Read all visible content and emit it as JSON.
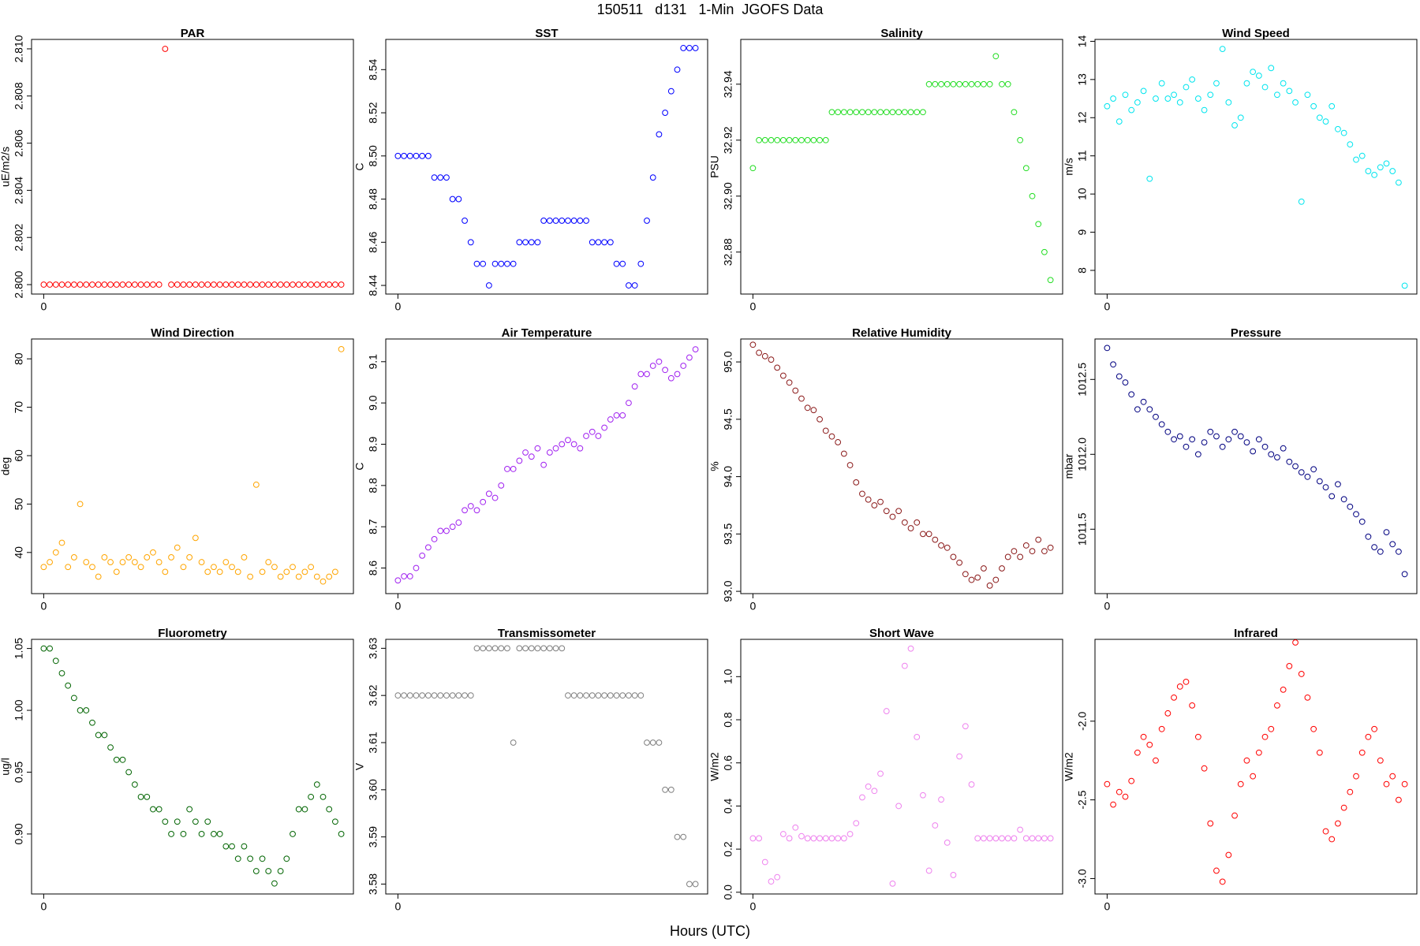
{
  "chart_data": {
    "title": "150511   d131   1-Min  JGOFS Data",
    "x_label": "Hours (UTC)",
    "x": [
      0,
      1,
      2,
      3,
      4,
      5,
      6,
      7,
      8,
      9,
      10,
      11,
      12,
      13,
      14,
      15,
      16,
      17,
      18,
      19,
      20,
      21,
      22,
      23,
      24,
      25,
      26,
      27,
      28,
      29,
      30,
      31,
      32,
      33,
      34,
      35,
      36,
      37,
      38,
      39,
      40,
      41,
      42,
      43,
      44,
      45,
      46,
      47,
      48,
      49
    ],
    "xlim": [
      -2,
      51
    ],
    "xticks": [
      0
    ],
    "panels": [
      {
        "type": "scatter",
        "title": "PAR",
        "y_label": "uE/m2/s",
        "color": "#ff0000",
        "values": [
          2.8,
          2.8,
          2.8,
          2.8,
          2.8,
          2.8,
          2.8,
          2.8,
          2.8,
          2.8,
          2.8,
          2.8,
          2.8,
          2.8,
          2.8,
          2.8,
          2.8,
          2.8,
          2.8,
          2.8,
          2.81,
          2.8,
          2.8,
          2.8,
          2.8,
          2.8,
          2.8,
          2.8,
          2.8,
          2.8,
          2.8,
          2.8,
          2.8,
          2.8,
          2.8,
          2.8,
          2.8,
          2.8,
          2.8,
          2.8,
          2.8,
          2.8,
          2.8,
          2.8,
          2.8,
          2.8,
          2.8,
          2.8,
          2.8,
          2.8
        ],
        "ylim": [
          2.7996,
          2.8104
        ],
        "yticks": [
          {
            "value": 2.8,
            "label": "2.800"
          },
          {
            "value": 2.802,
            "label": "2.802"
          },
          {
            "value": 2.804,
            "label": "2.804"
          },
          {
            "value": 2.806,
            "label": "2.806"
          },
          {
            "value": 2.808,
            "label": "2.808"
          },
          {
            "value": 2.81,
            "label": "2.810"
          }
        ]
      },
      {
        "type": "scatter",
        "title": "SST",
        "y_label": "C",
        "color": "#0000ff",
        "values": [
          8.5,
          8.5,
          8.5,
          8.5,
          8.5,
          8.5,
          8.49,
          8.49,
          8.49,
          8.48,
          8.48,
          8.47,
          8.46,
          8.45,
          8.45,
          8.44,
          8.45,
          8.45,
          8.45,
          8.45,
          8.46,
          8.46,
          8.46,
          8.46,
          8.47,
          8.47,
          8.47,
          8.47,
          8.47,
          8.47,
          8.47,
          8.47,
          8.46,
          8.46,
          8.46,
          8.46,
          8.45,
          8.45,
          8.44,
          8.44,
          8.45,
          8.47,
          8.49,
          8.51,
          8.52,
          8.53,
          8.54,
          8.55,
          8.55,
          8.55
        ],
        "ylim": [
          8.436,
          8.554
        ],
        "yticks": [
          8.44,
          8.46,
          8.48,
          {
            "value": 8.5,
            "label": "8.50"
          },
          8.52,
          8.54
        ]
      },
      {
        "type": "scatter",
        "title": "Salinity",
        "y_label": "PSU",
        "color": "#22dd22",
        "values": [
          32.91,
          32.92,
          32.92,
          32.92,
          32.92,
          32.92,
          32.92,
          32.92,
          32.92,
          32.92,
          32.92,
          32.92,
          32.92,
          32.93,
          32.93,
          32.93,
          32.93,
          32.93,
          32.93,
          32.93,
          32.93,
          32.93,
          32.93,
          32.93,
          32.93,
          32.93,
          32.93,
          32.93,
          32.93,
          32.94,
          32.94,
          32.94,
          32.94,
          32.94,
          32.94,
          32.94,
          32.94,
          32.94,
          32.94,
          32.94,
          32.95,
          32.94,
          32.94,
          32.93,
          32.92,
          32.91,
          32.9,
          32.89,
          32.88,
          32.87
        ],
        "ylim": [
          32.865,
          32.956
        ],
        "yticks": [
          32.88,
          {
            "value": 32.9,
            "label": "32.90"
          },
          32.92,
          32.94
        ]
      },
      {
        "type": "scatter",
        "title": "Wind Speed",
        "y_label": "m/s",
        "color": "#00e5ee",
        "values": [
          12.3,
          12.5,
          11.9,
          12.6,
          12.2,
          12.4,
          12.7,
          10.4,
          12.5,
          12.9,
          12.5,
          12.6,
          12.4,
          12.8,
          13.0,
          12.5,
          12.2,
          12.6,
          12.9,
          13.8,
          12.4,
          11.8,
          12.0,
          12.9,
          13.2,
          13.1,
          12.8,
          13.3,
          12.6,
          12.9,
          12.7,
          12.4,
          9.8,
          12.6,
          12.3,
          12.0,
          11.9,
          12.3,
          11.7,
          11.6,
          11.3,
          10.9,
          11.0,
          10.6,
          10.5,
          10.7,
          10.8,
          10.6,
          10.3,
          7.6
        ],
        "ylim": [
          7.38,
          14.05
        ],
        "yticks": [
          8,
          9,
          10,
          11,
          12,
          13,
          14
        ]
      },
      {
        "type": "scatter",
        "title": "Wind Direction",
        "y_label": "deg",
        "color": "#ffa500",
        "values": [
          37,
          38,
          40,
          42,
          37,
          39,
          50,
          38,
          37,
          35,
          39,
          38,
          36,
          38,
          39,
          38,
          37,
          39,
          40,
          38,
          36,
          39,
          41,
          37,
          39,
          43,
          38,
          36,
          37,
          36,
          38,
          37,
          36,
          39,
          35,
          54,
          36,
          38,
          37,
          35,
          36,
          37,
          35,
          36,
          37,
          35,
          34,
          35,
          36,
          82
        ],
        "ylim": [
          31.5,
          84.1
        ],
        "yticks": [
          40,
          50,
          60,
          70,
          80
        ]
      },
      {
        "type": "scatter",
        "title": "Air Temperature",
        "y_label": "C",
        "color": "#a020f0",
        "values": [
          8.57,
          8.58,
          8.58,
          8.6,
          8.63,
          8.65,
          8.67,
          8.69,
          8.69,
          8.7,
          8.71,
          8.74,
          8.75,
          8.74,
          8.76,
          8.78,
          8.77,
          8.8,
          8.84,
          8.84,
          8.86,
          8.88,
          8.87,
          8.89,
          8.85,
          8.88,
          8.89,
          8.9,
          8.91,
          8.9,
          8.89,
          8.92,
          8.93,
          8.92,
          8.94,
          8.96,
          8.97,
          8.97,
          9.0,
          9.04,
          9.07,
          9.07,
          9.09,
          9.1,
          9.08,
          9.06,
          9.07,
          9.09,
          9.11,
          9.13
        ],
        "ylim": [
          8.538,
          9.155
        ],
        "yticks": [
          8.6,
          8.7,
          8.8,
          8.9,
          {
            "value": 9,
            "label": "9.0"
          },
          9.1
        ]
      },
      {
        "type": "scatter",
        "title": "Relative Humidity",
        "y_label": "%",
        "color": "#8b1a1a",
        "values": [
          95.15,
          95.08,
          95.05,
          95.02,
          94.95,
          94.88,
          94.82,
          94.75,
          94.68,
          94.6,
          94.58,
          94.5,
          94.4,
          94.35,
          94.3,
          94.2,
          94.1,
          93.95,
          93.85,
          93.8,
          93.75,
          93.78,
          93.7,
          93.65,
          93.7,
          93.6,
          93.55,
          93.6,
          93.5,
          93.5,
          93.45,
          93.4,
          93.38,
          93.3,
          93.25,
          93.15,
          93.1,
          93.12,
          93.2,
          93.05,
          93.1,
          93.2,
          93.3,
          93.35,
          93.3,
          93.4,
          93.35,
          93.45,
          93.35,
          93.38
        ],
        "ylim": [
          92.98,
          95.2
        ],
        "yticks": [
          {
            "value": 93,
            "label": "93.0"
          },
          93.5,
          {
            "value": 94,
            "label": "94.0"
          },
          94.5,
          {
            "value": 95,
            "label": "95.0"
          }
        ]
      },
      {
        "type": "scatter",
        "title": "Pressure",
        "y_label": "mbar",
        "color": "#000080",
        "values": [
          1012.71,
          1012.6,
          1012.52,
          1012.48,
          1012.4,
          1012.3,
          1012.35,
          1012.3,
          1012.25,
          1012.2,
          1012.15,
          1012.1,
          1012.12,
          1012.05,
          1012.1,
          1012.0,
          1012.08,
          1012.15,
          1012.12,
          1012.05,
          1012.1,
          1012.15,
          1012.12,
          1012.08,
          1012.02,
          1012.1,
          1012.05,
          1012.0,
          1011.98,
          1012.04,
          1011.95,
          1011.92,
          1011.88,
          1011.85,
          1011.9,
          1011.82,
          1011.78,
          1011.72,
          1011.8,
          1011.7,
          1011.65,
          1011.6,
          1011.55,
          1011.45,
          1011.38,
          1011.35,
          1011.48,
          1011.4,
          1011.35,
          1011.2
        ],
        "ylim": [
          1011.07,
          1012.77
        ],
        "yticks": [
          1011.5,
          {
            "value": 1012,
            "label": "1012.0"
          },
          1012.5
        ]
      },
      {
        "type": "scatter",
        "title": "Fluorometry",
        "y_label": "ug/l",
        "color": "#006400",
        "values": [
          1.05,
          1.05,
          1.04,
          1.03,
          1.02,
          1.01,
          1.0,
          1.0,
          0.99,
          0.98,
          0.98,
          0.97,
          0.96,
          0.96,
          0.95,
          0.94,
          0.93,
          0.93,
          0.92,
          0.92,
          0.91,
          0.9,
          0.91,
          0.9,
          0.92,
          0.91,
          0.9,
          0.91,
          0.9,
          0.9,
          0.89,
          0.89,
          0.88,
          0.89,
          0.88,
          0.87,
          0.88,
          0.87,
          0.86,
          0.87,
          0.88,
          0.9,
          0.92,
          0.92,
          0.93,
          0.94,
          0.93,
          0.92,
          0.91,
          0.9
        ],
        "ylim": [
          0.8515,
          1.0574
        ],
        "yticks": [
          {
            "value": 0.9,
            "label": "0.90"
          },
          0.95,
          {
            "value": 1,
            "label": "1.00"
          },
          1.05
        ]
      },
      {
        "type": "scatter",
        "title": "Transmissometer",
        "y_label": "V",
        "color": "#808080",
        "values": [
          3.62,
          3.62,
          3.62,
          3.62,
          3.62,
          3.62,
          3.62,
          3.62,
          3.62,
          3.62,
          3.62,
          3.62,
          3.62,
          3.63,
          3.63,
          3.63,
          3.63,
          3.63,
          3.63,
          3.61,
          3.63,
          3.63,
          3.63,
          3.63,
          3.63,
          3.63,
          3.63,
          3.63,
          3.62,
          3.62,
          3.62,
          3.62,
          3.62,
          3.62,
          3.62,
          3.62,
          3.62,
          3.62,
          3.62,
          3.62,
          3.62,
          3.61,
          3.61,
          3.61,
          3.6,
          3.6,
          3.59,
          3.59,
          3.58,
          3.58
        ],
        "ylim": [
          3.5779,
          3.6319
        ],
        "yticks": [
          3.58,
          3.59,
          {
            "value": 3.6,
            "label": "3.60"
          },
          3.61,
          3.62,
          3.63
        ]
      },
      {
        "type": "scatter",
        "title": "Short Wave",
        "y_label": "W/m2",
        "color": "#ee82ee",
        "values": [
          0.25,
          0.25,
          0.14,
          0.05,
          0.07,
          0.27,
          0.25,
          0.3,
          0.26,
          0.25,
          0.25,
          0.25,
          0.25,
          0.25,
          0.25,
          0.25,
          0.27,
          0.32,
          0.44,
          0.49,
          0.47,
          0.55,
          0.84,
          0.04,
          0.4,
          1.05,
          1.13,
          0.72,
          0.45,
          0.1,
          0.31,
          0.43,
          0.23,
          0.08,
          0.63,
          0.77,
          0.5,
          0.25,
          0.25,
          0.25,
          0.25,
          0.25,
          0.25,
          0.25,
          0.29,
          0.25,
          0.25,
          0.25,
          0.25,
          0.25
        ],
        "ylim": [
          -0.008,
          1.173
        ],
        "yticks": [
          {
            "value": 0,
            "label": "0.0"
          },
          0.2,
          0.4,
          0.6,
          0.8,
          {
            "value": 1,
            "label": "1.0"
          }
        ]
      },
      {
        "type": "scatter",
        "title": "Infrared",
        "y_label": "W/m2",
        "color": "#ff0000",
        "values": [
          -2.4,
          -2.53,
          -2.45,
          -2.48,
          -2.38,
          -2.2,
          -2.1,
          -2.15,
          -2.25,
          -2.05,
          -1.95,
          -1.85,
          -1.78,
          -1.75,
          -1.9,
          -2.1,
          -2.3,
          -2.65,
          -2.95,
          -3.02,
          -2.85,
          -2.6,
          -2.4,
          -2.25,
          -2.35,
          -2.2,
          -2.1,
          -2.05,
          -1.9,
          -1.8,
          -1.65,
          -1.5,
          -1.7,
          -1.85,
          -2.05,
          -2.2,
          -2.7,
          -2.75,
          -2.65,
          -2.55,
          -2.45,
          -2.35,
          -2.2,
          -2.1,
          -2.05,
          -2.25,
          -2.4,
          -2.35,
          -2.5,
          -2.4
        ],
        "ylim": [
          -3.098,
          -1.48
        ],
        "yticks": [
          {
            "value": -3,
            "label": "-3.0"
          },
          -2.5,
          {
            "value": -2,
            "label": "-2.0"
          }
        ]
      }
    ]
  }
}
